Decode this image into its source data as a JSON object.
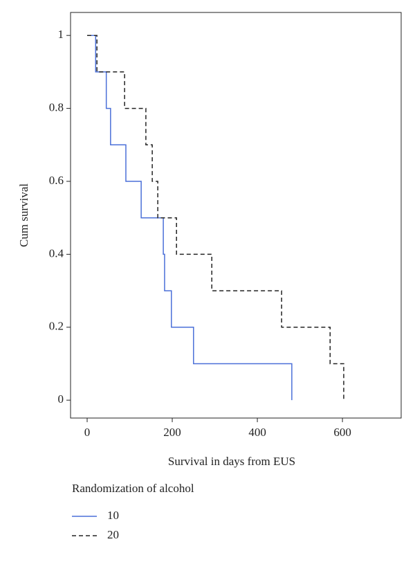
{
  "chart_data": {
    "type": "step",
    "ylabel": "Cum survival",
    "xlabel": "Survival in days from EUS",
    "legend_title": "Randomization of alcohol",
    "xlim": [
      -39,
      738
    ],
    "ylim": [
      -0.049,
      1.063
    ],
    "xticks": [
      0,
      200,
      400,
      600
    ],
    "yticks": [
      0,
      0.2,
      0.4,
      0.6,
      0.8,
      1
    ],
    "series": [
      {
        "name": "10",
        "color": "#4a6fd8",
        "dash": false,
        "x": [
          0,
          20,
          45,
          55,
          91,
          127,
          179,
          182,
          198,
          250,
          481
        ],
        "values": [
          1,
          0.9,
          0.8,
          0.7,
          0.6,
          0.5,
          0.4,
          0.3,
          0.2,
          0.1,
          0
        ]
      },
      {
        "name": "20",
        "color": "#222222",
        "dash": true,
        "x": [
          0,
          23,
          88,
          138,
          153,
          166,
          210,
          293,
          457,
          571,
          603
        ],
        "values": [
          1,
          0.9,
          0.8,
          0.7,
          0.6,
          0.5,
          0.4,
          0.3,
          0.2,
          0.1,
          0
        ]
      }
    ]
  }
}
